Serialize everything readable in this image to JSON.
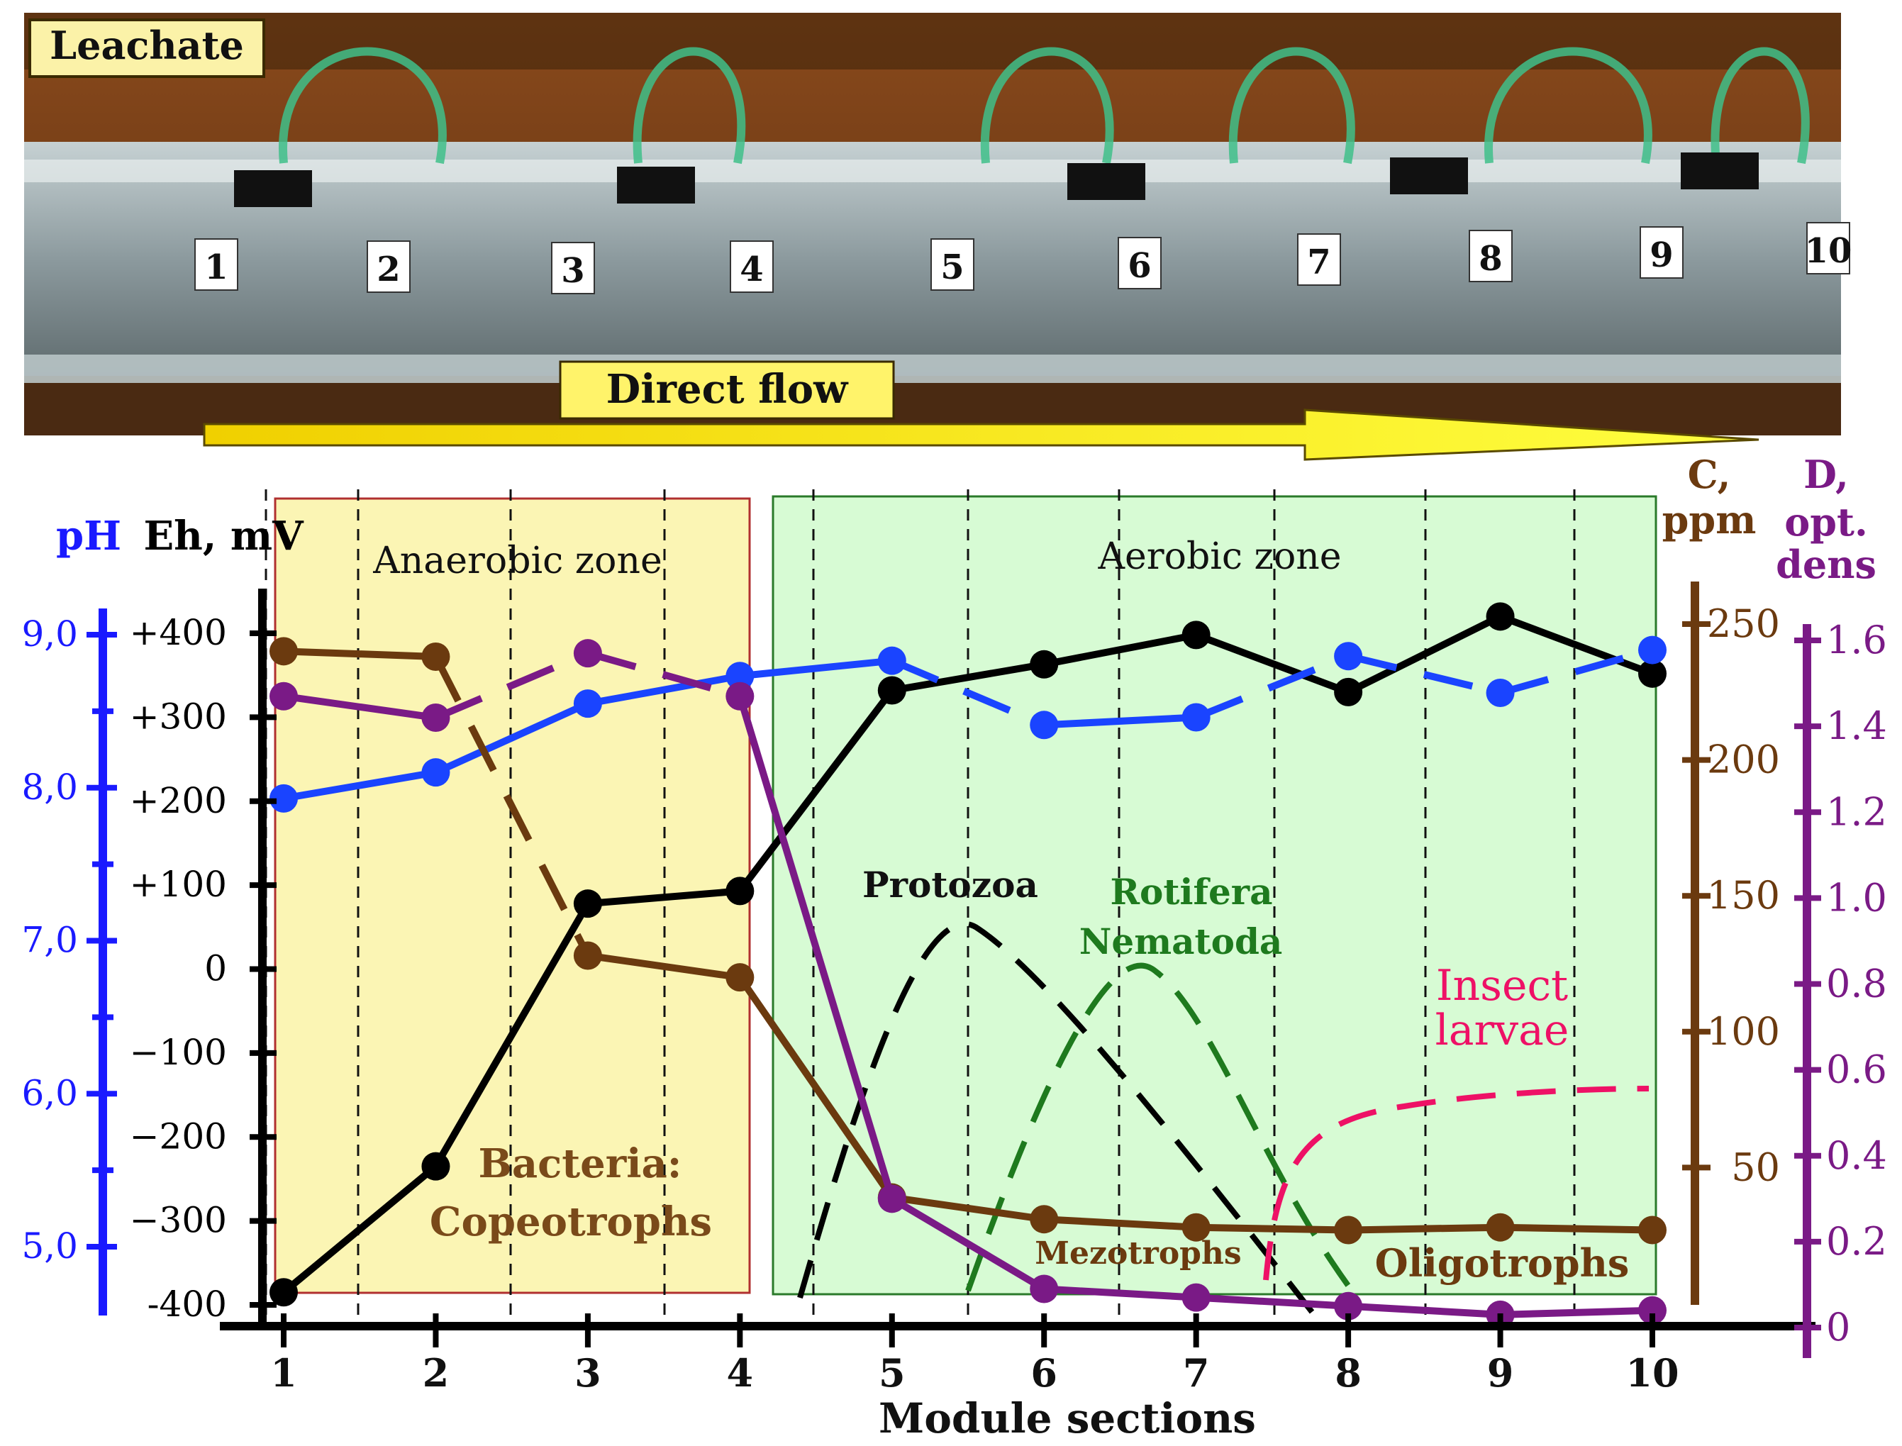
{
  "photo": {
    "leachate_label": "Leachate",
    "flow_label": "Direct flow",
    "section_numbers": [
      "1",
      "2",
      "3",
      "4",
      "5",
      "6",
      "7",
      "8",
      "9",
      "10"
    ]
  },
  "chart_data": {
    "type": "line",
    "xlabel": "Module sections",
    "x_ticks": [
      "1",
      "2",
      "3",
      "4",
      "5",
      "6",
      "7",
      "8",
      "9",
      "10"
    ],
    "zones": [
      {
        "label": "Anaerobic zone",
        "x_range": [
          1,
          4
        ],
        "color": "#fbf5b4"
      },
      {
        "label": "Aerobic zone",
        "x_range": [
          4.1,
          10
        ],
        "color": "#d7fbd4"
      }
    ],
    "axes": {
      "ph": {
        "label": "pH",
        "color": "#1a1aff",
        "ylim": [
          4.7,
          9.0
        ],
        "ticks": [
          "9,0",
          "8,0",
          "7,0",
          "6,0",
          "5,0"
        ],
        "tick_values": [
          9,
          8,
          7,
          6,
          5
        ]
      },
      "eh": {
        "label": "Eh, mV",
        "color": "#000000",
        "ylim": [
          -400,
          400
        ],
        "ticks": [
          "+400",
          "+300",
          "+200",
          "+100",
          "0",
          "−100",
          "−200",
          "−300",
          "-400"
        ],
        "tick_values": [
          400,
          300,
          200,
          100,
          0,
          -100,
          -200,
          -300,
          -400
        ]
      },
      "c": {
        "label_line1": "C,",
        "label_line2": "ppm",
        "color": "#6b3a0f",
        "ylim": [
          0,
          250
        ],
        "ticks": [
          "250",
          "200",
          "150",
          "100",
          "50"
        ],
        "tick_values": [
          250,
          200,
          150,
          100,
          50
        ]
      },
      "d": {
        "label_line1": "D,",
        "label_line2": "opt.",
        "label_line3": "dens",
        "color": "#7a1a86",
        "ylim": [
          0,
          1.6
        ],
        "ticks": [
          "1.6",
          "1.4",
          "1.2",
          "1.0",
          "0.8",
          "0.6",
          "0.4",
          "0.2",
          "0"
        ],
        "tick_values": [
          1.6,
          1.4,
          1.2,
          1.0,
          0.8,
          0.6,
          0.4,
          0.2,
          0
        ]
      }
    },
    "series": [
      {
        "axis": "eh",
        "color": "#000000",
        "style": "solid",
        "points": [
          [
            1,
            -385
          ],
          [
            2,
            -235
          ],
          [
            3,
            78
          ],
          [
            4,
            93
          ],
          [
            5,
            332
          ],
          [
            6,
            363
          ],
          [
            7,
            398
          ],
          [
            8,
            330
          ],
          [
            9,
            420
          ],
          [
            10,
            352
          ]
        ]
      },
      {
        "axis": "ph",
        "color": "#1a44ff",
        "style": "mixed",
        "points": [
          [
            1,
            7.93
          ],
          [
            2,
            8.1
          ],
          [
            3,
            8.55
          ],
          [
            4,
            8.73
          ],
          [
            5,
            8.83
          ],
          [
            6,
            8.41
          ],
          [
            7,
            8.46
          ],
          [
            8,
            8.86
          ],
          [
            9,
            8.62
          ],
          [
            10,
            8.9
          ]
        ]
      },
      {
        "axis": "c",
        "color": "#6b3a0f",
        "style": "mixed",
        "points": [
          [
            1,
            240
          ],
          [
            2,
            238
          ],
          [
            3,
            128
          ],
          [
            4,
            120
          ],
          [
            5,
            39
          ],
          [
            6,
            31
          ],
          [
            7,
            28
          ],
          [
            8,
            27
          ],
          [
            9,
            28
          ],
          [
            10,
            27
          ]
        ]
      },
      {
        "axis": "d",
        "color": "#7a1a86",
        "style": "mixed",
        "points": [
          [
            1,
            1.47
          ],
          [
            2,
            1.42
          ],
          [
            3,
            1.57
          ],
          [
            4,
            1.47
          ],
          [
            5,
            0.3
          ],
          [
            6,
            0.09
          ],
          [
            7,
            0.07
          ],
          [
            8,
            0.05
          ],
          [
            9,
            0.03
          ],
          [
            10,
            0.04
          ]
        ]
      }
    ],
    "curves": [
      {
        "label": "Protozoa",
        "color": "#000000"
      },
      {
        "label_line1": "Rotifera",
        "label_line2": "Nematoda",
        "color": "#1e7a1e"
      },
      {
        "label_line1": "Insect",
        "label_line2": "larvae",
        "color": "#ee1166"
      }
    ],
    "annotations": {
      "bacteria": "Bacteria:",
      "copeotrophs": "Copeotrophs",
      "mezotrophs": "Mezotrophs",
      "oligotrophs": "Oligotrophs"
    }
  }
}
